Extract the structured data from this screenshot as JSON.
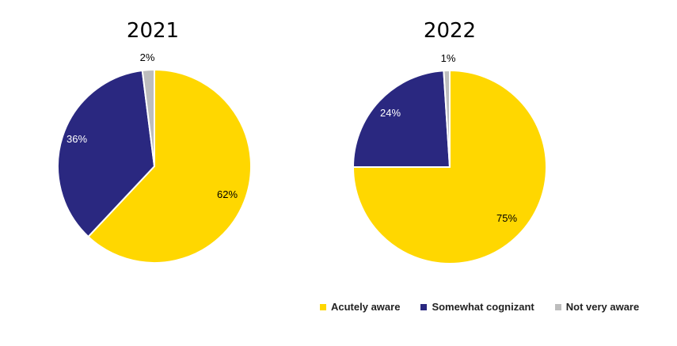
{
  "chart_data": [
    {
      "type": "pie",
      "title": "2021",
      "categories": [
        "Acutely aware",
        "Somewhat cognizant",
        "Not very aware"
      ],
      "values": [
        62,
        36,
        2
      ],
      "labels": [
        "62%",
        "36%",
        "2%"
      ]
    },
    {
      "type": "pie",
      "title": "2022",
      "categories": [
        "Acutely aware",
        "Somewhat cognizant",
        "Not very aware"
      ],
      "values": [
        75,
        24,
        1
      ],
      "labels": [
        "75%",
        "24%",
        "1%"
      ]
    }
  ],
  "legend": {
    "placement": "bottom-right",
    "items": [
      {
        "label": "Acutely aware",
        "color": "#FFD700"
      },
      {
        "label": "Somewhat cognizant",
        "color": "#2A2880"
      },
      {
        "label": "Not very aware",
        "color": "#BDBDBD"
      }
    ]
  },
  "colors": {
    "acutely_aware": "#FFD700",
    "somewhat_cognizant": "#2A2880",
    "not_very_aware": "#BDBDBD"
  }
}
